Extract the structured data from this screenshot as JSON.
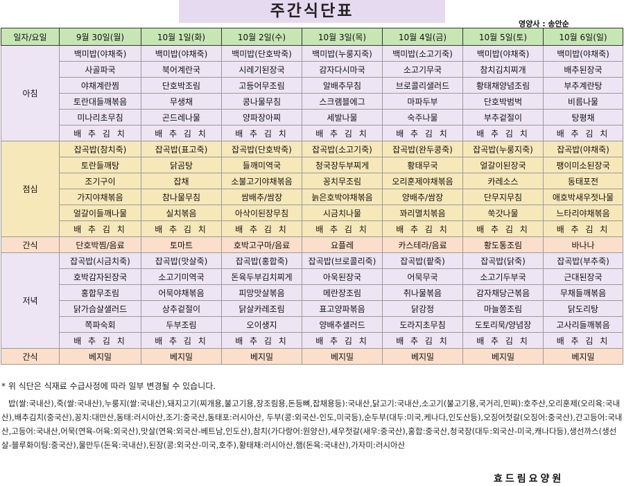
{
  "title": "주간식단표",
  "dietitian": "영양사 : 송안순",
  "columns": [
    "일자/요일",
    "9월 30일(월)",
    "10월 1일(화)",
    "10월 2일(수)",
    "10월 3일(목)",
    "10월 4일(금)",
    "10월 5일(토)",
    "10월 6일(일)"
  ],
  "meals": {
    "breakfast": {
      "label": "아침",
      "rows": [
        [
          "백미밥(야채죽)",
          "백미밥(야채죽)",
          "백미밥(단호박죽)",
          "백미밥(누룽지죽)",
          "백미밥(소고기죽)",
          "백미밥(야채죽)",
          "백미밥(야채죽)"
        ],
        [
          "사골파국",
          "북어계란국",
          "시레기된장국",
          "감자다시마국",
          "소고기무국",
          "참치김치찌개",
          "배추된장국"
        ],
        [
          "야채계란찜",
          "단호박조림",
          "고등어무조림",
          "알배추무침",
          "브로콜리샐러드",
          "황태채양념조림",
          "부추계란탕"
        ],
        [
          "토란대들깨볶음",
          "무생채",
          "콩나물무침",
          "스크램블에그",
          "마파두부",
          "단호박범벅",
          "비름나물"
        ],
        [
          "미나리초무침",
          "곤드레나물",
          "양파장아찌",
          "세발나물",
          "숙주나물",
          "부추겉절이",
          "탕평채"
        ],
        [
          "배 추 김 치",
          "배 추 김 치",
          "배 추 김 치",
          "배 추 김 치",
          "배 추 김 치",
          "배 추 김 치",
          "배 추 김 치"
        ]
      ]
    },
    "lunch": {
      "label": "점심",
      "rows": [
        [
          "잡곡밥(참치죽)",
          "잡곡밥(표고죽)",
          "잡곡밥(단호박죽)",
          "잡곡밥(소고기죽)",
          "잡곡밥(완두콩죽)",
          "잡곡밥(누룽지죽)",
          "잡곡밥(야채죽)"
        ],
        [
          "토란들깨탕",
          "닭곰탕",
          "들깨미역국",
          "청국장두부찌게",
          "황태무국",
          "얼갈이된장국",
          "팽이미소된장국"
        ],
        [
          "조기구이",
          "잡채",
          "소불고기야채볶음",
          "꽁치무조림",
          "오리훈제야채볶음",
          "카레소스",
          "동태포전"
        ],
        [
          "가지야채볶음",
          "참나물무침",
          "쌈배추/쌈장",
          "늙은호박야채볶음",
          "양배추/쌈장",
          "단무지무침",
          "애호박새우젓나물"
        ],
        [
          "얼갈이들깨나물",
          "실치볶음",
          "아삭이된장무침",
          "시금치나물",
          "꽈리멸치볶음",
          "쑥갓나물",
          "느타리야채볶음"
        ],
        [
          "배 추 김 치",
          "배 추 김 치",
          "배 추 김 치",
          "배 추 김 치",
          "배 추 김 치",
          "배 추 김 치",
          "배 추 김 치"
        ]
      ]
    },
    "snack1": {
      "label": "간식",
      "items": [
        "단호박찜/음료",
        "토마트",
        "호박고구마/음료",
        "요플레",
        "카스테라/음료",
        "황도통조림",
        "바나나"
      ]
    },
    "dinner": {
      "label": "저녁",
      "rows": [
        [
          "잡곡밥(시금치죽)",
          "잡곡밥(맛살죽)",
          "잡곡밥(홍합죽)",
          "잡곡밥(브로콜리죽)",
          "잡곡밥(팥죽)",
          "잡곡밥(닭죽)",
          "잡곡밥(부추죽)"
        ],
        [
          "호박감자된장국",
          "소고기미역국",
          "돈육두부김치찌게",
          "아욱된장국",
          "어묵무국",
          "소고기두부국",
          "근대된장국"
        ],
        [
          "홍합무조림",
          "어묵야채볶음",
          "피망맛살볶음",
          "메란장조림",
          "취나물볶음",
          "감자채당근볶음",
          "무채들깨볶음"
        ],
        [
          "닭가슴살샐러드",
          "상추겉절이",
          "닭살카레조림",
          "표고양파볶음",
          "닭강정",
          "마늘쫑조림",
          "닭도리탕"
        ],
        [
          "쪽파숙회",
          "두부조림",
          "오이생지",
          "양배추샐러드",
          "도라지초무침",
          "도토리묵/양념장",
          "고사리들깨볶음"
        ],
        [
          "배 추 김 치",
          "배 추 김 치",
          "배 추 김 치",
          "배 추 김 치",
          "배 추 김 치",
          "배 추 김 치",
          "배 추 김 치"
        ]
      ]
    },
    "snack2": {
      "label": "간식",
      "items": [
        "베지밀",
        "베지밀",
        "베지밀",
        "베지밀",
        "베지밀",
        "베지밀",
        "베지밀"
      ]
    }
  },
  "notice": "* 위 식단은 식재료 수급사정에 따라 일부 변경될 수 있습니다.",
  "origin": "밥(쌀:국내산),죽(쌀:국내산),누룽지(쌀:국내산),돼지고기(찌개용,불고기용,장조림용,돈등뼈,잡채용등):국내산,닭고기:국내산,소고기(불고기용,국거리,민찌):호주산,오리훈제(오리육:국내산),배추김치(중국산),꽁치:대만산,동태:러시아산,조기:중국산,동태포:러시아산, 두부(콩:외국산-인도,미국등),순두부(대두:미국,케나다,인도산등),오징어젓갈(오징어:중국산),간고등어:국내산,고등어:국내산,어묵(연육-어육:외국산),맛살(연육:외국산-베트남,인도산),참치(가다랑어:원양산),새우젓갈(새우:중국산),홍합:중국산,청국장(대두:외국산-미국,캐나다등),생선까스(생선살-블루화이팅:중국산),물만두(돈육:국내산),된장(콩:외국산-미국,호주),황태채:러시아산,햄(돈육:국내산),가자미:러시아산",
  "footer": "효드림요양원"
}
